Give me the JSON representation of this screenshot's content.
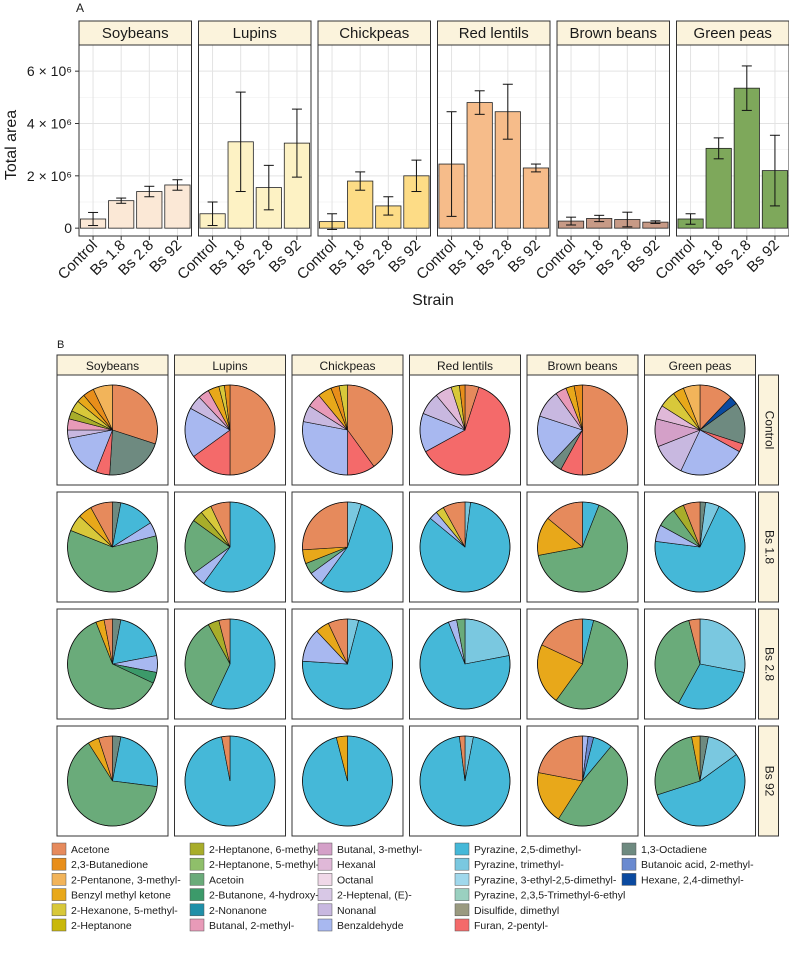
{
  "panel_a": {
    "label": "A",
    "ylabel": "Total area",
    "xlabel": "Strain",
    "y_ticks": [
      {
        "value": 0,
        "label": "0"
      },
      {
        "value": 2000000,
        "label": "2 × 10⁶"
      },
      {
        "value": 4000000,
        "label": "4 × 10⁶"
      },
      {
        "value": 6000000,
        "label": "6 × 10⁶"
      }
    ]
  },
  "panel_b": {
    "label": "B",
    "row_labels": [
      "Control",
      "Bs 1.8",
      "Bs 2.8",
      "Bs 92"
    ]
  },
  "colors": {
    "Soybeans": "#fbe8d6",
    "Lupins": "#fdf2c4",
    "Chickpeas": "#fddc86",
    "Red lentils": "#f6bc8a",
    "Brown beans": "#c79a86",
    "Green peas": "#7ea85b"
  },
  "chart_data": [
    {
      "type": "bar",
      "title": "A",
      "xlabel": "Strain",
      "ylabel": "Total area",
      "ylim": [
        -300000,
        7000000
      ],
      "categories": [
        "Control",
        "Bs 1.8",
        "Bs 2.8",
        "Bs 92"
      ],
      "facets": [
        {
          "name": "Soybeans",
          "values": [
            350000,
            1050000,
            1400000,
            1650000
          ],
          "errors": [
            250000,
            100000,
            200000,
            200000
          ]
        },
        {
          "name": "Lupins",
          "values": [
            550000,
            3300000,
            1550000,
            3250000
          ],
          "errors": [
            450000,
            1900000,
            850000,
            1300000
          ]
        },
        {
          "name": "Chickpeas",
          "values": [
            250000,
            1800000,
            850000,
            2000000
          ],
          "errors": [
            300000,
            350000,
            350000,
            600000
          ]
        },
        {
          "name": "Red lentils",
          "values": [
            2450000,
            4800000,
            4450000,
            2300000
          ],
          "errors": [
            2000000,
            450000,
            1050000,
            150000
          ]
        },
        {
          "name": "Brown beans",
          "values": [
            270000,
            370000,
            330000,
            230000
          ],
          "errors": [
            150000,
            120000,
            280000,
            50000
          ]
        },
        {
          "name": "Green peas",
          "values": [
            350000,
            3050000,
            5350000,
            2200000
          ],
          "errors": [
            200000,
            400000,
            850000,
            1350000
          ]
        }
      ]
    },
    {
      "type": "pie",
      "title": "B",
      "legend": [
        {
          "name": "Acetone",
          "color": "#e68a5c"
        },
        {
          "name": "2,3-Butanedione",
          "color": "#e88e1a"
        },
        {
          "name": "2-Pentanone, 3-methyl-",
          "color": "#f2b45a"
        },
        {
          "name": "Benzyl methyl ketone",
          "color": "#e8a81a"
        },
        {
          "name": "2-Hexanone, 5-methyl-",
          "color": "#d8c83a"
        },
        {
          "name": "2-Heptanone",
          "color": "#c9b80a"
        },
        {
          "name": "2-Heptanone, 6-methyl-",
          "color": "#a8ad2a"
        },
        {
          "name": "2-Heptanone, 5-methyl-",
          "color": "#8fbf6a"
        },
        {
          "name": "Acetoin",
          "color": "#6aab7a"
        },
        {
          "name": "2-Butanone, 4-hydroxy-",
          "color": "#3c9a6a"
        },
        {
          "name": "2-Nonanone",
          "color": "#1f8fa8"
        },
        {
          "name": "Butanal, 2-methyl-",
          "color": "#e89ab8"
        },
        {
          "name": "Butanal, 3-methyl-",
          "color": "#d4a0c8"
        },
        {
          "name": "Hexanal",
          "color": "#e0b8d8"
        },
        {
          "name": "Octanal",
          "color": "#f0d8e8"
        },
        {
          "name": "2-Heptenal, (E)-",
          "color": "#d8c8e6"
        },
        {
          "name": "Nonanal",
          "color": "#c8b8e0"
        },
        {
          "name": "Benzaldehyde",
          "color": "#a8b8f0"
        },
        {
          "name": "Pyrazine, 2,5-dimethyl-",
          "color": "#45b8d8"
        },
        {
          "name": "Pyrazine, trimethyl-",
          "color": "#7ac8e0"
        },
        {
          "name": "Pyrazine, 3-ethyl-2,5-dimethyl-",
          "color": "#a0d8ec"
        },
        {
          "name": "Pyrazine, 2,3,5-Trimethyl-6-ethyl",
          "color": "#9ad0c0"
        },
        {
          "name": "Disulfide, dimethyl",
          "color": "#9a9a80"
        },
        {
          "name": "Furan, 2-pentyl-",
          "color": "#f46a6a"
        },
        {
          "name": "1,3-Octadiene",
          "color": "#6e8a80"
        },
        {
          "name": "Butanoic acid, 2-methyl-",
          "color": "#6a8ad0"
        },
        {
          "name": "Hexane, 2,4-dimethyl-",
          "color": "#0a4aa0"
        }
      ],
      "grid": [
        [
          [
            [
              "Acetone",
              0.3
            ],
            [
              "1,3-Octadiene",
              0.21
            ],
            [
              "Furan, 2-pentyl-",
              0.05
            ],
            [
              "Benzaldehyde",
              0.16
            ],
            [
              "Nonanal",
              0.03
            ],
            [
              "Butanal, 2-methyl-",
              0.04
            ],
            [
              "2-Heptanone, 6-methyl-",
              0.03
            ],
            [
              "2-Hexanone, 5-methyl-",
              0.04
            ],
            [
              "Benzyl methyl ketone",
              0.03
            ],
            [
              "2,3-Butanedione",
              0.04
            ],
            [
              "2-Pentanone, 3-methyl-",
              0.07
            ]
          ],
          [
            [
              "Acetone",
              0.5
            ],
            [
              "Furan, 2-pentyl-",
              0.15
            ],
            [
              "Benzaldehyde",
              0.18
            ],
            [
              "Nonanal",
              0.05
            ],
            [
              "Butanal, 2-methyl-",
              0.04
            ],
            [
              "Benzyl methyl ketone",
              0.04
            ],
            [
              "2-Hexanone, 5-methyl-",
              0.02
            ],
            [
              "2,3-Butanedione",
              0.02
            ]
          ],
          [
            [
              "Acetone",
              0.4
            ],
            [
              "Furan, 2-pentyl-",
              0.1
            ],
            [
              "Benzaldehyde",
              0.28
            ],
            [
              "Nonanal",
              0.06
            ],
            [
              "Butanal, 2-methyl-",
              0.05
            ],
            [
              "Benzyl methyl ketone",
              0.05
            ],
            [
              "2,3-Butanedione",
              0.03
            ],
            [
              "2-Hexanone, 5-methyl-",
              0.03
            ]
          ],
          [
            [
              "Acetone",
              0.05
            ],
            [
              "Furan, 2-pentyl-",
              0.62
            ],
            [
              "Benzaldehyde",
              0.14
            ],
            [
              "Nonanal",
              0.08
            ],
            [
              "Hexanal",
              0.06
            ],
            [
              "2-Hexanone, 5-methyl-",
              0.03
            ],
            [
              "2,3-Butanedione",
              0.02
            ]
          ],
          [
            [
              "Acetone",
              0.5
            ],
            [
              "Furan, 2-pentyl-",
              0.08
            ],
            [
              "1,3-Octadiene",
              0.04
            ],
            [
              "Benzaldehyde",
              0.18
            ],
            [
              "Nonanal",
              0.1
            ],
            [
              "Butanal, 2-methyl-",
              0.04
            ],
            [
              "Benzyl methyl ketone",
              0.03
            ],
            [
              "2,3-Butanedione",
              0.03
            ]
          ],
          [
            [
              "Acetone",
              0.12
            ],
            [
              "Hexane, 2,4-dimethyl-",
              0.03
            ],
            [
              "1,3-Octadiene",
              0.15
            ],
            [
              "Furan, 2-pentyl-",
              0.03
            ],
            [
              "Benzaldehyde",
              0.24
            ],
            [
              "Nonanal",
              0.12
            ],
            [
              "Butanal, 3-methyl-",
              0.1
            ],
            [
              "Hexanal",
              0.05
            ],
            [
              "2-Hexanone, 5-methyl-",
              0.06
            ],
            [
              "Benzyl methyl ketone",
              0.04
            ],
            [
              "2-Pentanone, 3-methyl-",
              0.06
            ]
          ]
        ],
        [
          [
            [
              "1,3-Octadiene",
              0.03
            ],
            [
              "Pyrazine, 2,5-dimethyl-",
              0.13
            ],
            [
              "Benzaldehyde",
              0.05
            ],
            [
              "Acetoin",
              0.6
            ],
            [
              "2-Hexanone, 5-methyl-",
              0.06
            ],
            [
              "Benzyl methyl ketone",
              0.05
            ],
            [
              "Acetone",
              0.08
            ]
          ],
          [
            [
              "Pyrazine, 2,5-dimethyl-",
              0.6
            ],
            [
              "Benzaldehyde",
              0.05
            ],
            [
              "Acetoin",
              0.2
            ],
            [
              "2-Heptanone, 6-methyl-",
              0.04
            ],
            [
              "2-Hexanone, 5-methyl-",
              0.04
            ],
            [
              "Acetone",
              0.07
            ]
          ],
          [
            [
              "Pyrazine, trimethyl-",
              0.05
            ],
            [
              "Pyrazine, 2,5-dimethyl-",
              0.55
            ],
            [
              "Benzaldehyde",
              0.05
            ],
            [
              "Acetoin",
              0.04
            ],
            [
              "Benzyl methyl ketone",
              0.05
            ],
            [
              "Acetone",
              0.26
            ]
          ],
          [
            [
              "Pyrazine, trimethyl-",
              0.02
            ],
            [
              "Pyrazine, 2,5-dimethyl-",
              0.84
            ],
            [
              "Benzaldehyde",
              0.03
            ],
            [
              "2-Hexanone, 5-methyl-",
              0.03
            ],
            [
              "Acetone",
              0.08
            ]
          ],
          [
            [
              "Pyrazine, 2,5-dimethyl-",
              0.06
            ],
            [
              "Acetoin",
              0.66
            ],
            [
              "Benzyl methyl ketone",
              0.14
            ],
            [
              "Acetone",
              0.14
            ]
          ],
          [
            [
              "1,3-Octadiene",
              0.02
            ],
            [
              "Pyrazine, trimethyl-",
              0.05
            ],
            [
              "Pyrazine, 2,5-dimethyl-",
              0.7
            ],
            [
              "Benzaldehyde",
              0.06
            ],
            [
              "Acetoin",
              0.07
            ],
            [
              "2-Heptanone, 6-methyl-",
              0.04
            ],
            [
              "Acetone",
              0.06
            ]
          ]
        ],
        [
          [
            [
              "1,3-Octadiene",
              0.03
            ],
            [
              "Pyrazine, 2,5-dimethyl-",
              0.19
            ],
            [
              "Benzaldehyde",
              0.06
            ],
            [
              "2-Butanone, 4-hydroxy-",
              0.04
            ],
            [
              "Acetoin",
              0.62
            ],
            [
              "Benzyl methyl ketone",
              0.03
            ],
            [
              "Acetone",
              0.03
            ]
          ],
          [
            [
              "Pyrazine, 2,5-dimethyl-",
              0.57
            ],
            [
              "Acetoin",
              0.35
            ],
            [
              "2-Heptanone, 6-methyl-",
              0.04
            ],
            [
              "Acetone",
              0.04
            ]
          ],
          [
            [
              "Pyrazine, trimethyl-",
              0.04
            ],
            [
              "Pyrazine, 2,5-dimethyl-",
              0.72
            ],
            [
              "Benzaldehyde",
              0.12
            ],
            [
              "Benzyl methyl ketone",
              0.05
            ],
            [
              "Acetone",
              0.07
            ]
          ],
          [
            [
              "Pyrazine, trimethyl-",
              0.22
            ],
            [
              "Pyrazine, 2,5-dimethyl-",
              0.72
            ],
            [
              "Benzaldehyde",
              0.03
            ],
            [
              "Acetoin",
              0.03
            ]
          ],
          [
            [
              "Pyrazine, 2,5-dimethyl-",
              0.04
            ],
            [
              "Acetoin",
              0.56
            ],
            [
              "Benzyl methyl ketone",
              0.22
            ],
            [
              "Acetone",
              0.18
            ]
          ],
          [
            [
              "Pyrazine, trimethyl-",
              0.28
            ],
            [
              "Pyrazine, 2,5-dimethyl-",
              0.3
            ],
            [
              "Acetoin",
              0.38
            ],
            [
              "Acetone",
              0.04
            ]
          ]
        ],
        [
          [
            [
              "1,3-Octadiene",
              0.03
            ],
            [
              "Pyrazine, 2,5-dimethyl-",
              0.24
            ],
            [
              "Acetoin",
              0.64
            ],
            [
              "Benzyl methyl ketone",
              0.04
            ],
            [
              "Acetone",
              0.05
            ]
          ],
          [
            [
              "Pyrazine, 2,5-dimethyl-",
              0.97
            ],
            [
              "Acetone",
              0.03
            ]
          ],
          [
            [
              "Pyrazine, 2,5-dimethyl-",
              0.96
            ],
            [
              "Benzyl methyl ketone",
              0.04
            ]
          ],
          [
            [
              "Pyrazine, trimethyl-",
              0.03
            ],
            [
              "Pyrazine, 2,5-dimethyl-",
              0.95
            ],
            [
              "Acetone",
              0.02
            ]
          ],
          [
            [
              "Benzaldehyde",
              0.02
            ],
            [
              "Butanoic acid, 2-methyl-",
              0.02
            ],
            [
              "Pyrazine, 2,5-dimethyl-",
              0.07
            ],
            [
              "Acetoin",
              0.48
            ],
            [
              "Benzyl methyl ketone",
              0.19
            ],
            [
              "Acetone",
              0.22
            ]
          ],
          [
            [
              "1,3-Octadiene",
              0.03
            ],
            [
              "Pyrazine, trimethyl-",
              0.12
            ],
            [
              "Pyrazine, 2,5-dimethyl-",
              0.55
            ],
            [
              "Acetoin",
              0.27
            ],
            [
              "Benzyl methyl ketone",
              0.03
            ]
          ]
        ]
      ]
    }
  ]
}
